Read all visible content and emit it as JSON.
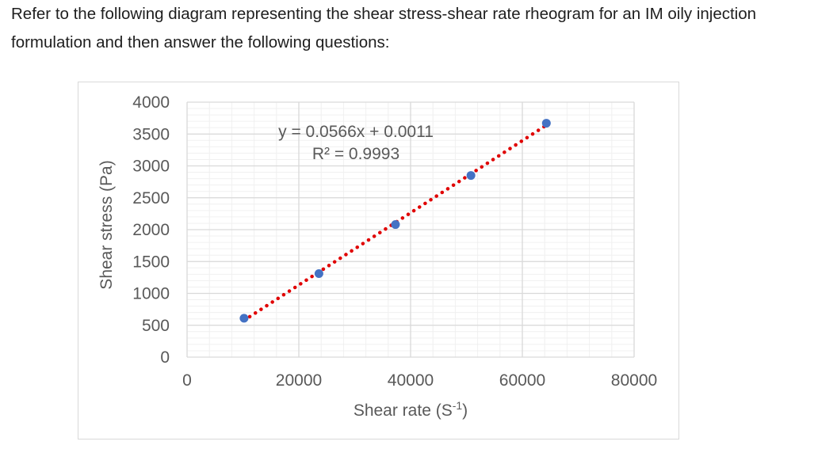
{
  "question": {
    "text": "Refer to the following diagram representing the shear stress-shear rate rheogram for an IM oily injection formulation and then answer the following questions:"
  },
  "chart_data": {
    "type": "scatter",
    "xlabel": "Shear rate (S",
    "xlabel_sup": "-1",
    "xlabel_end": ")",
    "ylabel": "Shear stress (Pa)",
    "xlim": [
      0,
      80000
    ],
    "ylim": [
      0,
      4000
    ],
    "x_ticks": [
      0,
      20000,
      40000,
      60000,
      80000
    ],
    "y_ticks": [
      0,
      500,
      1000,
      1500,
      2000,
      2500,
      3000,
      3500,
      4000
    ],
    "grid": true,
    "minor_grid": true,
    "points": [
      {
        "x": 10200,
        "y": 610
      },
      {
        "x": 23600,
        "y": 1310
      },
      {
        "x": 37300,
        "y": 2080
      },
      {
        "x": 50800,
        "y": 2850
      },
      {
        "x": 64300,
        "y": 3670
      }
    ],
    "trendline": {
      "type": "linear",
      "slope": 0.0566,
      "intercept": 0.0011,
      "x_range": [
        10200,
        64300
      ],
      "equation": "y = 0.0566x + 0.0011",
      "r_squared": "R² = 0.9993"
    },
    "colors": {
      "points": "#4472c4",
      "trendline": "#e00000",
      "major_grid": "#d9d9d9",
      "minor_grid": "#f0f0f0",
      "text": "#595959"
    }
  }
}
